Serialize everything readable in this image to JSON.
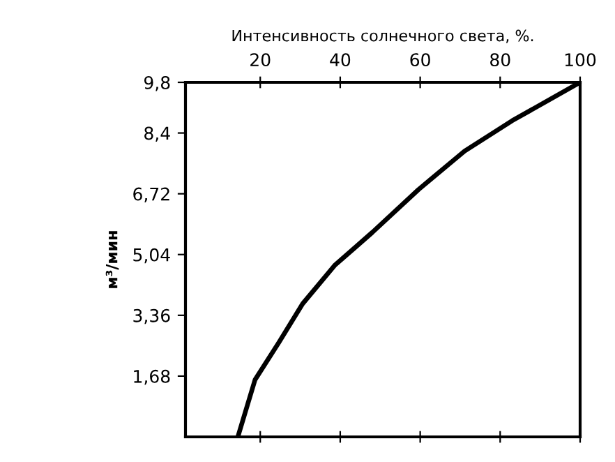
{
  "chart_data": {
    "type": "line",
    "xlabel": "Интенсивность солнечного света, %.",
    "ylabel": "м³/мин",
    "x": [
      14.4,
      18.7,
      24.6,
      30.6,
      38.6,
      48,
      59.6,
      71.1,
      83,
      92,
      100
    ],
    "series": [
      {
        "color": "#000000",
        "values": [
          0,
          1.58,
          2.6,
          3.68,
          4.74,
          5.65,
          6.84,
          7.9,
          8.74,
          9.3,
          9.8
        ]
      }
    ],
    "xlim": [
      1.3,
      100
    ],
    "xticks": [
      20,
      40,
      60,
      80,
      100
    ],
    "ylim": [
      0,
      9.8
    ],
    "yticks": [
      {
        "value": 1.68,
        "label": "1,68"
      },
      {
        "value": 3.36,
        "label": "3,36"
      },
      {
        "value": 5.04,
        "label": "5,04"
      },
      {
        "value": 6.72,
        "label": "6,72"
      },
      {
        "value": 8.4,
        "label": "8,4"
      },
      {
        "value": 9.8,
        "label": "9,8"
      }
    ],
    "grid": false,
    "legend": false,
    "marker": "none",
    "line_style": "solid"
  }
}
